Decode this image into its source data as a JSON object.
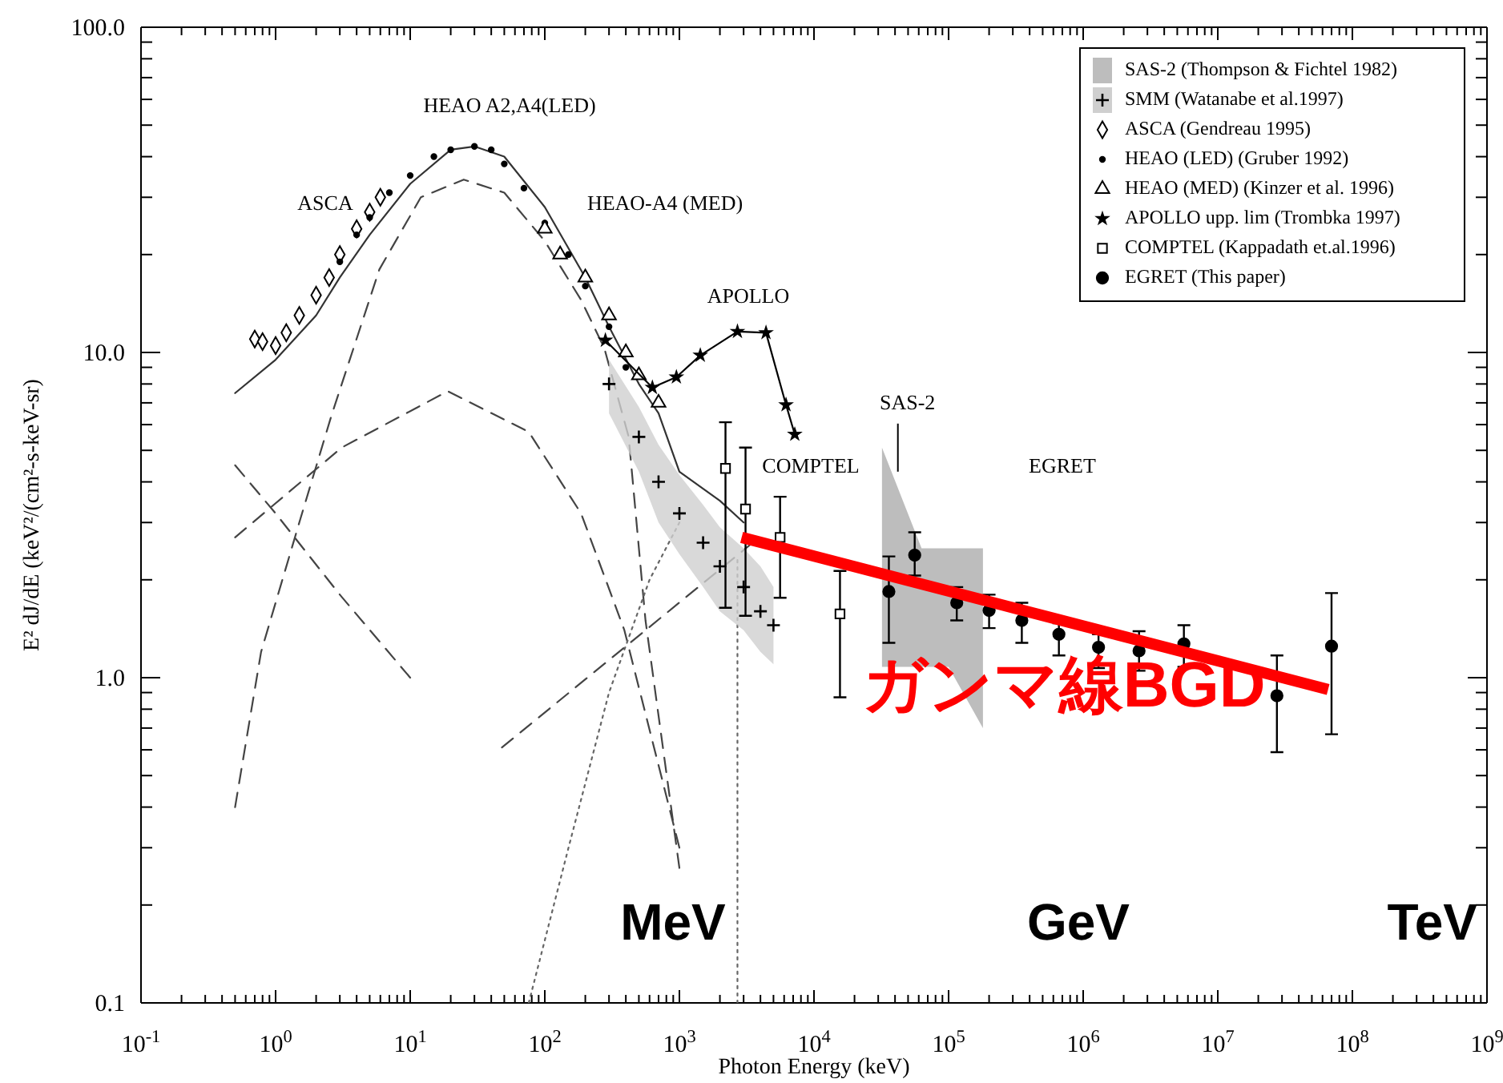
{
  "chart_data": {
    "type": "scatter",
    "log": "xy",
    "xlim": [
      0.1,
      1000000000.0
    ],
    "ylim": [
      0.1,
      100
    ],
    "xlabel": "Photon Energy (keV)",
    "ylabel": "E² dJ/dE (keV²/(cm²-s-keV-sr)",
    "legend": "top right",
    "xticks": [
      {
        "value": 0.1,
        "label": "10$^{-1}$"
      },
      {
        "value": 1,
        "label": "10$^{0}$"
      },
      {
        "value": 10,
        "label": "10$^{1}$"
      },
      {
        "value": 100,
        "label": "10$^{2}$"
      },
      {
        "value": 1000,
        "label": "10$^{3}$"
      },
      {
        "value": 10000.0,
        "label": "10$^{4}$"
      },
      {
        "value": 100000.0,
        "label": "10$^{5}$"
      },
      {
        "value": 1000000.0,
        "label": "10$^{6}$"
      },
      {
        "value": 10000000.0,
        "label": "10$^{7}$"
      },
      {
        "value": 100000000.0,
        "label": "10$^{8}$"
      },
      {
        "value": 1000000000.0,
        "label": "10$^{9}$"
      },
      {
        "value": 0.2,
        "label": null
      },
      {
        "value": 0.3,
        "label": null
      },
      {
        "value": 0.4,
        "label": null
      },
      {
        "value": 0.5,
        "label": null
      },
      {
        "value": 0.6,
        "label": null
      },
      {
        "value": 0.7,
        "label": null
      },
      {
        "value": 0.8,
        "label": null
      },
      {
        "value": 0.9,
        "label": null
      },
      {
        "value": 2.0,
        "label": null
      },
      {
        "value": 3.0,
        "label": null
      },
      {
        "value": 4.0,
        "label": null
      },
      {
        "value": 5.0,
        "label": null
      },
      {
        "value": 6.0,
        "label": null
      },
      {
        "value": 7.0,
        "label": null
      },
      {
        "value": 8.0,
        "label": null
      },
      {
        "value": 9.0,
        "label": null
      },
      {
        "value": 20.0,
        "label": null
      },
      {
        "value": 30.0,
        "label": null
      },
      {
        "value": 40.0,
        "label": null
      },
      {
        "value": 50.0,
        "label": null
      },
      {
        "value": 60.0,
        "label": null
      },
      {
        "value": 70.0,
        "label": null
      },
      {
        "value": 80.0,
        "label": null
      },
      {
        "value": 90.0,
        "label": null
      },
      {
        "value": 200.0,
        "label": null
      },
      {
        "value": 300.0,
        "label": null
      },
      {
        "value": 400.0,
        "label": null
      },
      {
        "value": 500.0,
        "label": null
      },
      {
        "value": 600.0,
        "label": null
      },
      {
        "value": 700.0,
        "label": null
      },
      {
        "value": 800.0,
        "label": null
      },
      {
        "value": 900.0,
        "label": null
      },
      {
        "value": 2000.0,
        "label": null
      },
      {
        "value": 3000.0,
        "label": null
      },
      {
        "value": 4000.0,
        "label": null
      },
      {
        "value": 5000.0,
        "label": null
      },
      {
        "value": 6000.0,
        "label": null
      },
      {
        "value": 7000.0,
        "label": null
      },
      {
        "value": 8000.0,
        "label": null
      },
      {
        "value": 9000.0,
        "label": null
      },
      {
        "value": 20000.0,
        "label": null
      },
      {
        "value": 30000.0,
        "label": null
      },
      {
        "value": 40000.0,
        "label": null
      },
      {
        "value": 50000.0,
        "label": null
      },
      {
        "value": 60000.0,
        "label": null
      },
      {
        "value": 70000.0,
        "label": null
      },
      {
        "value": 80000.0,
        "label": null
      },
      {
        "value": 90000.0,
        "label": null
      },
      {
        "value": 200000.0,
        "label": null
      },
      {
        "value": 300000.0,
        "label": null
      },
      {
        "value": 400000.0,
        "label": null
      },
      {
        "value": 500000.0,
        "label": null
      },
      {
        "value": 600000.0,
        "label": null
      },
      {
        "value": 700000.0,
        "label": null
      },
      {
        "value": 800000.0,
        "label": null
      },
      {
        "value": 900000.0,
        "label": null
      },
      {
        "value": 2000000.0,
        "label": null
      },
      {
        "value": 3000000.0,
        "label": null
      },
      {
        "value": 4000000.0,
        "label": null
      },
      {
        "value": 5000000.0,
        "label": null
      },
      {
        "value": 6000000.0,
        "label": null
      },
      {
        "value": 7000000.0,
        "label": null
      },
      {
        "value": 8000000.0,
        "label": null
      },
      {
        "value": 9000000.0,
        "label": null
      },
      {
        "value": 20000000.0,
        "label": null
      },
      {
        "value": 30000000.0,
        "label": null
      },
      {
        "value": 40000000.0,
        "label": null
      },
      {
        "value": 50000000.0,
        "label": null
      },
      {
        "value": 60000000.0,
        "label": null
      },
      {
        "value": 70000000.0,
        "label": null
      },
      {
        "value": 80000000.0,
        "label": null
      },
      {
        "value": 90000000.0,
        "label": null
      },
      {
        "value": 200000000.0,
        "label": null
      },
      {
        "value": 300000000.0,
        "label": null
      },
      {
        "value": 400000000.0,
        "label": null
      },
      {
        "value": 500000000.0,
        "label": null
      },
      {
        "value": 600000000.0,
        "label": null
      },
      {
        "value": 700000000.0,
        "label": null
      },
      {
        "value": 800000000.0,
        "label": null
      },
      {
        "value": 900000000.0,
        "label": null
      }
    ],
    "yticks": [
      {
        "value": 0.1,
        "label": "0.1"
      },
      {
        "value": 1,
        "label": "1.0"
      },
      {
        "value": 10,
        "label": "10.0"
      },
      {
        "value": 100,
        "label": "100.0"
      },
      {
        "value": 0.2,
        "label": null
      },
      {
        "value": 0.3,
        "label": null
      },
      {
        "value": 0.4,
        "label": null
      },
      {
        "value": 0.5,
        "label": null
      },
      {
        "value": 0.6,
        "label": null
      },
      {
        "value": 0.7,
        "label": null
      },
      {
        "value": 0.8,
        "label": null
      },
      {
        "value": 0.9,
        "label": null
      },
      {
        "value": 2,
        "label": null
      },
      {
        "value": 3,
        "label": null
      },
      {
        "value": 4,
        "label": null
      },
      {
        "value": 5,
        "label": null
      },
      {
        "value": 6,
        "label": null
      },
      {
        "value": 7,
        "label": null
      },
      {
        "value": 8,
        "label": null
      },
      {
        "value": 9,
        "label": null
      },
      {
        "value": 20,
        "label": null
      },
      {
        "value": 30,
        "label": null
      },
      {
        "value": 40,
        "label": null
      },
      {
        "value": 50,
        "label": null
      },
      {
        "value": 60,
        "label": null
      },
      {
        "value": 70,
        "label": null
      },
      {
        "value": 80,
        "label": null
      },
      {
        "value": 90,
        "label": null
      }
    ],
    "annotations": [
      "HEAO A2,A4(LED)",
      "ASCA",
      "HEAO-A4 (MED)",
      "APOLLO",
      "COMPTEL",
      {
        "text": "SAS-2",
        "x": 42000,
        "y": 4.3
      },
      "EGRET",
      "MeV",
      "GeV",
      "TeV"
    ],
    "series": [
      {
        "name": "SAS-2 (Thompson & Fichtel 1982)",
        "color": "#bdbdbd",
        "marker": "none",
        "x": [
          32000,
          63000,
          100000,
          180000
        ],
        "values": [
          null,
          null,
          null,
          null
        ],
        "upper": [
          5.1,
          2.5,
          2.5,
          2.5
        ],
        "lower": [
          1.08,
          1.08,
          1.08,
          0.7
        ]
      },
      {
        "type": "line",
        "color": "#333333",
        "line_style": "solid",
        "x": [
          0.5,
          1,
          2,
          3,
          5,
          10,
          20,
          30,
          50,
          100,
          200,
          300,
          500,
          700,
          1000,
          2000,
          3000
        ],
        "values": [
          7.5,
          9.5,
          13,
          17,
          23,
          33,
          42,
          43,
          40,
          28,
          17,
          12,
          8,
          6.5,
          4.3,
          3.5,
          3.0
        ]
      },
      {
        "type": "line",
        "color": "#444444",
        "line_style": "dashed",
        "x": [
          0.5,
          0.78,
          1.5,
          2.6,
          5.9,
          12,
          25,
          50,
          100,
          186,
          277,
          420,
          560,
          1000
        ],
        "values": [
          0.4,
          1.2,
          3.0,
          6.4,
          18,
          30,
          34,
          31,
          22,
          14.5,
          10.3,
          5.5,
          1.5,
          0.26
        ]
      },
      {
        "type": "line",
        "color": "#444444",
        "line_style": "dashed",
        "x": [
          0.5,
          3.1,
          19,
          76,
          186,
          390,
          1000
        ],
        "values": [
          2.7,
          5.1,
          7.6,
          5.7,
          3.2,
          1.4,
          0.3
        ]
      },
      {
        "type": "line",
        "color": "#444444",
        "line_style": "dashed",
        "x": [
          0.5,
          1,
          3,
          10
        ],
        "values": [
          4.5,
          3.2,
          1.8,
          1.0
        ]
      },
      {
        "type": "line",
        "color": "#666666",
        "line_style": "dotted",
        "x": [
          76,
          150,
          300,
          600,
          1000
        ],
        "values": [
          0.1,
          0.3,
          0.9,
          2.0,
          3.0
        ]
      },
      {
        "type": "line",
        "color": "#666666",
        "line_style": "dotted",
        "x": [
          2700,
          2700
        ],
        "values": [
          0.1,
          2.3
        ]
      },
      {
        "type": "line",
        "color": "#444444",
        "line_style": "dashed",
        "x": [
          48,
          3500
        ],
        "values": [
          0.61,
          2.6
        ]
      },
      {
        "name": "SMM (Watanabe et al.1997)",
        "color": "#000000",
        "marker": "cross",
        "x": [
          300,
          500,
          700,
          1000,
          1500,
          2000,
          3000,
          4000,
          5000
        ],
        "values": [
          8,
          5.5,
          4.0,
          3.2,
          2.6,
          2.2,
          1.9,
          1.6,
          1.45
        ],
        "lower": [
          6.5,
          4.3,
          3.0,
          2.4,
          1.9,
          1.6,
          1.4,
          1.2,
          1.1
        ],
        "upper": [
          9.5,
          6.8,
          5.2,
          4.2,
          3.4,
          2.9,
          2.5,
          2.2,
          1.9
        ]
      },
      {
        "name": "ASCA (Gendreau 1995)",
        "color": "#000000",
        "marker": "diamond",
        "x": [
          0.7,
          0.8,
          1,
          1.2,
          1.5,
          2,
          2.5,
          3,
          4,
          5,
          6
        ],
        "values": [
          11,
          10.8,
          10.5,
          11.5,
          13,
          15,
          17,
          20,
          24,
          27,
          30
        ]
      },
      {
        "name": "HEAO (LED) (Gruber 1992)",
        "color": "#000000",
        "marker": "circle",
        "x": [
          3,
          4,
          5,
          7,
          10,
          15,
          20,
          30,
          40,
          50,
          70,
          100,
          150,
          200,
          300,
          400
        ],
        "values": [
          19,
          23,
          26,
          31,
          35,
          40,
          42,
          43,
          42,
          38,
          32,
          25,
          20,
          16,
          12,
          9
        ]
      },
      {
        "name": "HEAO (MED) (Kinzer et al. 1996)",
        "color": "#000000",
        "marker": "triangle",
        "x": [
          100,
          130,
          200,
          300,
          400,
          500,
          700
        ],
        "values": [
          24,
          20,
          17,
          13,
          10,
          8.5,
          7
        ]
      },
      {
        "type": "line",
        "name": "APOLLO upp. lim (Trombka 1997)",
        "color": "#000000",
        "marker": "star",
        "x": [
          282,
          630,
          950,
          1430,
          2700,
          4400,
          6200,
          7200
        ],
        "values": [
          10.9,
          7.8,
          8.4,
          9.8,
          11.6,
          11.5,
          6.9,
          5.6
        ]
      },
      {
        "name": "COMPTEL (Kappadath et.al.1996)",
        "color": "#000000",
        "marker": "square",
        "x": [
          2200,
          3100,
          5600,
          15600
        ],
        "values": [
          4.4,
          3.3,
          2.7,
          1.57
        ],
        "errors": [
          [
            1.64,
            6.1
          ],
          [
            1.55,
            5.1
          ],
          [
            1.76,
            3.6
          ],
          [
            0.87,
            2.13
          ]
        ]
      },
      {
        "name": "EGRET (This paper)",
        "color": "#000000",
        "marker": "circle",
        "x": [
          36000,
          56000,
          115000,
          200000,
          350000,
          660000,
          1300000,
          2600000,
          5600000,
          27500000,
          70000000
        ],
        "values": [
          1.84,
          2.38,
          1.7,
          1.61,
          1.5,
          1.36,
          1.24,
          1.21,
          1.27,
          0.88,
          1.25
        ],
        "errors": [
          [
            1.28,
            2.36
          ],
          [
            2.06,
            2.8
          ],
          [
            1.5,
            1.9
          ],
          [
            1.42,
            1.8
          ],
          [
            1.28,
            1.7
          ],
          [
            1.17,
            1.47
          ],
          [
            1.07,
            1.36
          ],
          [
            1.05,
            1.39
          ],
          [
            1.08,
            1.45
          ],
          [
            0.59,
            1.17
          ],
          [
            0.67,
            1.82
          ]
        ]
      },
      {
        "type": "line",
        "name": "ガンマ線BGD",
        "color": "#ff0000",
        "x": [
          2900,
          66000000
        ],
        "values": [
          2.7,
          0.92
        ]
      }
    ]
  }
}
